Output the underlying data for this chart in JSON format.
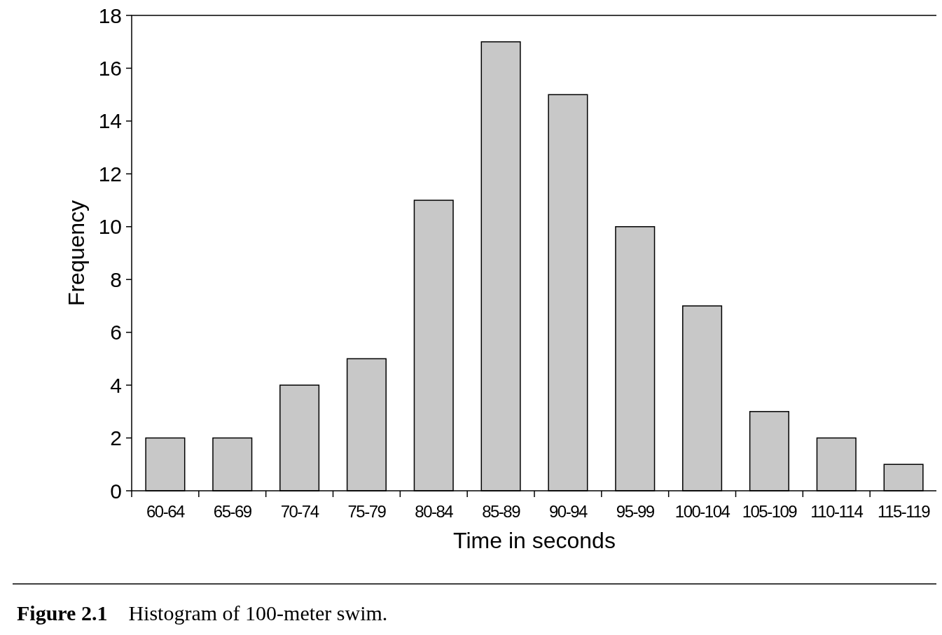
{
  "chart_data": {
    "type": "bar",
    "xlabel": "Time in seconds",
    "ylabel": "Frequency",
    "categories": [
      "60-64",
      "65-69",
      "70-74",
      "75-79",
      "80-84",
      "85-89",
      "90-94",
      "95-99",
      "100-104",
      "105-109",
      "110-114",
      "115-119"
    ],
    "values": [
      2,
      2,
      4,
      5,
      11,
      17,
      15,
      10,
      7,
      3,
      2,
      1
    ],
    "color": "#c8c8c8",
    "ylim": [
      0,
      18
    ],
    "yticks": [
      0,
      2,
      4,
      6,
      8,
      10,
      12,
      14,
      16,
      18
    ],
    "grid": false,
    "annotations": [
      "Figure 2.1    Histogram of 100-meter swim."
    ]
  }
}
